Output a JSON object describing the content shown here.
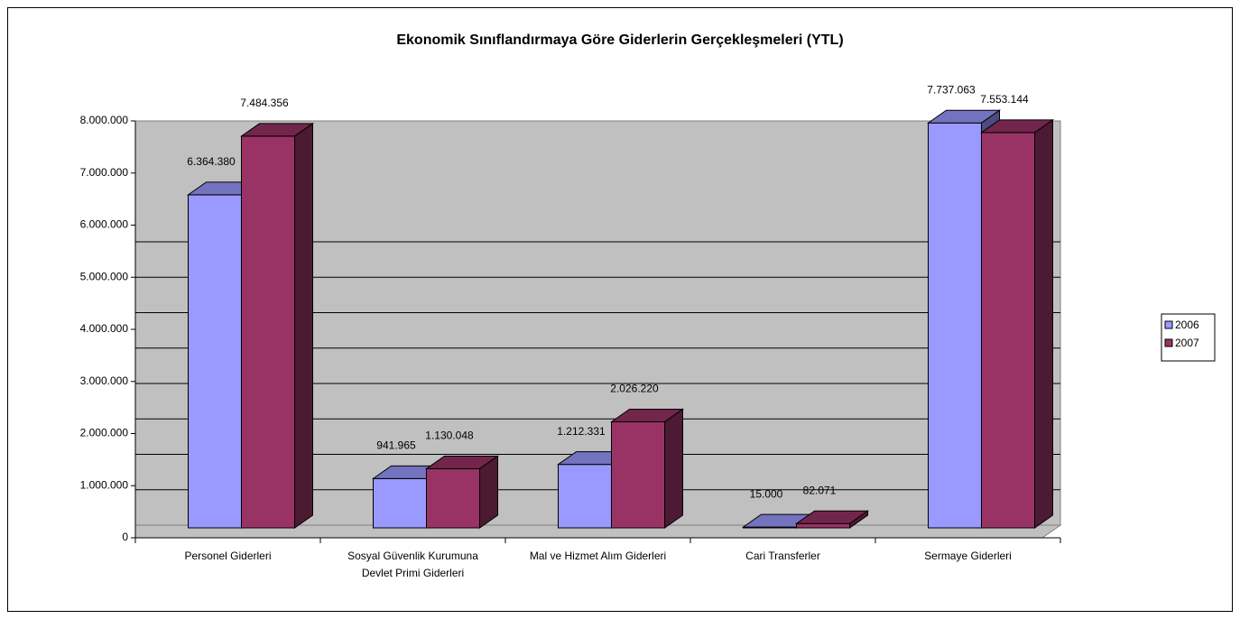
{
  "chart_data": {
    "type": "bar3d",
    "title": "Ekonomik Sınıflandırmaya Göre Giderlerin Gerçekleşmeleri (YTL)",
    "categories": [
      "Personel Giderleri",
      "Sosyal Güvenlik Kurumuna Devlet Primi Giderleri",
      "Mal ve Hizmet Alım Giderleri",
      "Cari Transferler",
      "Sermaye Giderleri"
    ],
    "series": [
      {
        "name": "2006",
        "color": "#9999ff",
        "values": [
          6364380,
          941965,
          1212331,
          15000,
          7737063
        ],
        "value_labels": [
          "6.364.380",
          "941.965",
          "1.212.331",
          "15.000",
          "7.737.063"
        ]
      },
      {
        "name": "2007",
        "color": "#993366",
        "values": [
          7484356,
          1130048,
          2026220,
          82071,
          7553144
        ],
        "value_labels": [
          "7.484.356",
          "1.130.048",
          "2.026.220",
          "82.071",
          "7.553.144"
        ]
      }
    ],
    "ylim": [
      0,
      8000000
    ],
    "yticks": [
      0,
      {
        "value": 1000000,
        "label": "1.000.000"
      },
      {
        "value": 2000000,
        "label": "2.000.000"
      },
      {
        "value": 3000000,
        "label": "3.000.000"
      },
      {
        "value": 4000000,
        "label": "4.000.000"
      },
      {
        "value": 5000000,
        "label": "5.000.000"
      },
      {
        "value": 6000000,
        "label": "6.000.000"
      },
      {
        "value": 7000000,
        "label": "7.000.000"
      },
      {
        "value": 8000000,
        "label": "8.000.000"
      }
    ],
    "grid": true,
    "legend": "right"
  }
}
